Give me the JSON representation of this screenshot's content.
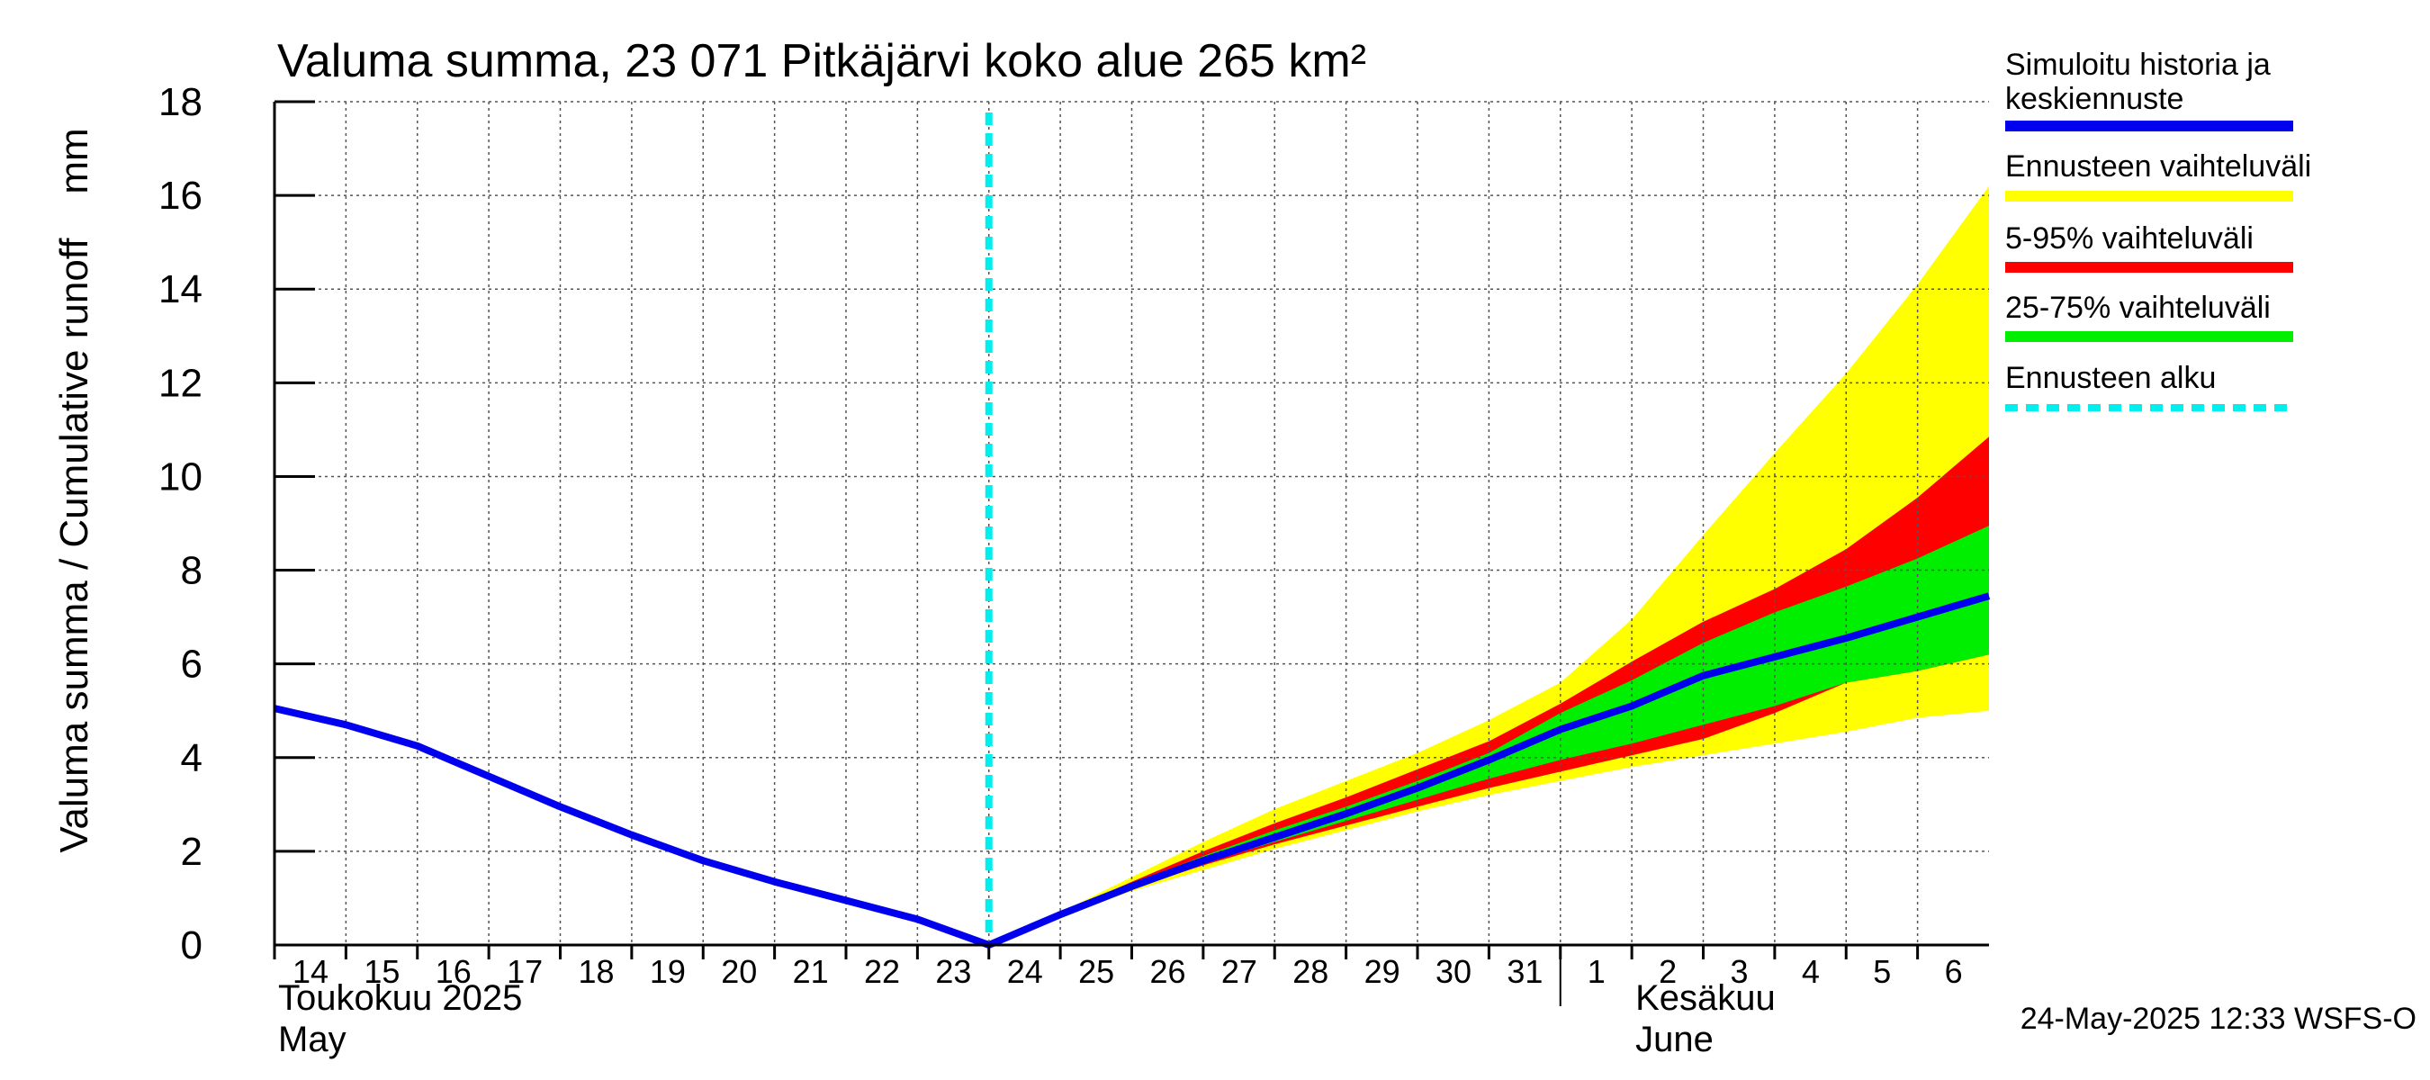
{
  "chart_data": {
    "type": "area",
    "title": "Valuma summa, 23 071 Pitkäjärvi koko alue 265 km²",
    "ylabel": "Valuma summa / Cumulative runoff    mm",
    "ylim": [
      0,
      18
    ],
    "yticks": [
      "0",
      "2",
      "4",
      "6",
      "8",
      "10",
      "12",
      "14",
      "16",
      "18"
    ],
    "xlim": [
      0,
      24
    ],
    "xticks": [
      {
        "x": 0,
        "label": "14"
      },
      {
        "x": 1,
        "label": "15"
      },
      {
        "x": 2,
        "label": "16"
      },
      {
        "x": 3,
        "label": "17"
      },
      {
        "x": 4,
        "label": "18"
      },
      {
        "x": 5,
        "label": "19"
      },
      {
        "x": 6,
        "label": "20"
      },
      {
        "x": 7,
        "label": "21"
      },
      {
        "x": 8,
        "label": "22"
      },
      {
        "x": 9,
        "label": "23"
      },
      {
        "x": 10,
        "label": "24"
      },
      {
        "x": 11,
        "label": "25"
      },
      {
        "x": 12,
        "label": "26"
      },
      {
        "x": 13,
        "label": "27"
      },
      {
        "x": 14,
        "label": "28"
      },
      {
        "x": 15,
        "label": "29"
      },
      {
        "x": 16,
        "label": "30"
      },
      {
        "x": 17,
        "label": "31"
      },
      {
        "x": 18,
        "label": "1"
      },
      {
        "x": 19,
        "label": "2"
      },
      {
        "x": 20,
        "label": "3"
      },
      {
        "x": 21,
        "label": "4"
      },
      {
        "x": 22,
        "label": "5"
      },
      {
        "x": 23,
        "label": "6"
      }
    ],
    "month_divider_x": 18,
    "months": [
      {
        "x": 0,
        "fi": "Toukokuu  2025",
        "en": "May"
      },
      {
        "x": 19,
        "fi": "Kesäkuu",
        "en": "June"
      }
    ],
    "forecast_start_x": 10,
    "series": [
      {
        "name": "Simuloitu historia ja keskiennuste",
        "color": "#0000ee",
        "x": [
          0,
          1,
          2,
          3,
          4,
          5,
          6,
          7,
          8,
          9,
          10,
          11,
          12,
          13,
          14,
          15,
          16,
          17,
          18,
          19,
          20,
          21,
          22,
          23,
          24
        ],
        "y": [
          5.05,
          4.7,
          4.25,
          3.6,
          2.95,
          2.35,
          1.8,
          1.35,
          0.95,
          0.55,
          0.0,
          0.65,
          1.25,
          1.8,
          2.3,
          2.8,
          3.35,
          3.95,
          4.6,
          5.1,
          5.75,
          6.15,
          6.55,
          7.0,
          7.45
        ]
      },
      {
        "name": "Ennusteen vaihteluväli",
        "color": "#ffff00",
        "x": [
          10,
          11,
          12,
          13,
          14,
          15,
          16,
          17,
          18,
          19,
          20,
          21,
          22,
          23,
          24
        ],
        "lower": [
          0.0,
          0.6,
          1.15,
          1.6,
          2.05,
          2.45,
          2.85,
          3.2,
          3.5,
          3.8,
          4.05,
          4.3,
          4.55,
          4.85,
          5.0
        ],
        "upper": [
          0.0,
          0.7,
          1.45,
          2.2,
          2.9,
          3.5,
          4.1,
          4.8,
          5.6,
          6.95,
          8.75,
          10.5,
          12.2,
          14.1,
          16.2
        ]
      },
      {
        "name": "5-95% vaihteluväli",
        "color": "#ff0000",
        "x": [
          10,
          11,
          12,
          13,
          14,
          15,
          16,
          17,
          18,
          19,
          20,
          21,
          22,
          23,
          24
        ],
        "lower": [
          0.0,
          0.62,
          1.2,
          1.7,
          2.15,
          2.55,
          2.95,
          3.35,
          3.7,
          4.05,
          4.4,
          4.95,
          5.6,
          5.85,
          6.2
        ],
        "upper": [
          0.0,
          0.68,
          1.35,
          2.0,
          2.6,
          3.15,
          3.75,
          4.35,
          5.15,
          6.05,
          6.9,
          7.6,
          8.45,
          9.55,
          10.85
        ]
      },
      {
        "name": "25-75% vaihteluväli",
        "color": "#00ee00",
        "x": [
          10,
          11,
          12,
          13,
          14,
          15,
          16,
          17,
          18,
          19,
          20,
          21,
          22,
          23,
          24
        ],
        "lower": [
          0.0,
          0.64,
          1.22,
          1.75,
          2.2,
          2.65,
          3.1,
          3.55,
          3.95,
          4.3,
          4.7,
          5.1,
          5.6,
          5.85,
          6.2
        ],
        "upper": [
          0.0,
          0.66,
          1.3,
          1.9,
          2.45,
          2.95,
          3.5,
          4.1,
          4.95,
          5.65,
          6.45,
          7.1,
          7.65,
          8.25,
          8.95
        ]
      }
    ],
    "legend_forecast_start": "Ennusteen alku",
    "legend_forecast_start_color": "#00eeee",
    "legend_placement": "right",
    "grid": true
  },
  "footer": "24-May-2025 12:33 WSFS-O"
}
